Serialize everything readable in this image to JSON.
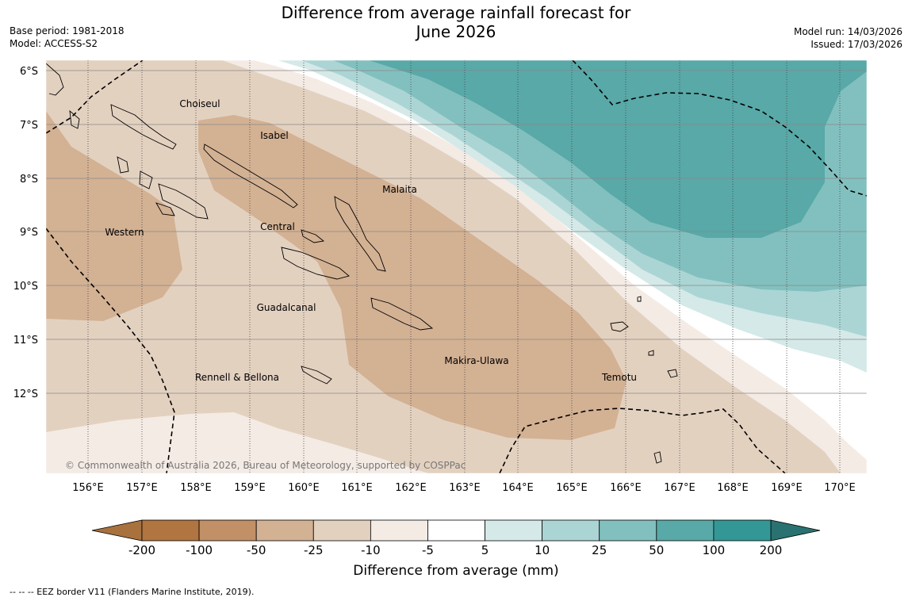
{
  "title": {
    "line1": "Difference from average rainfall forecast for",
    "line2": "June 2026"
  },
  "meta_left": {
    "base_period": "Base period: 1981-2018",
    "model": "Model: ACCESS-S2"
  },
  "meta_right": {
    "model_run": "Model run: 14/03/2026",
    "issued": "Issued: 17/03/2026"
  },
  "map": {
    "lat_labels": [
      "6°S",
      "7°S",
      "8°S",
      "9°S",
      "10°S",
      "11°S",
      "12°S"
    ],
    "lon_labels": [
      "156°E",
      "157°E",
      "158°E",
      "159°E",
      "160°E",
      "161°E",
      "162°E",
      "163°E",
      "164°E",
      "165°E",
      "166°E",
      "167°E",
      "168°E",
      "169°E",
      "170°E"
    ],
    "regions": [
      "Choiseul",
      "Isabel",
      "Malaita",
      "Western",
      "Central",
      "Guadalcanal",
      "Makira-Ulawa",
      "Rennell & Bellona",
      "Temotu"
    ],
    "credit": "© Commonwealth of Australia 2026, Bureau of Meteorology, supported by COSPPac"
  },
  "legend": {
    "ticks": [
      "-200",
      "-100",
      "-50",
      "-25",
      "-10",
      "-5",
      "5",
      "10",
      "25",
      "50",
      "100",
      "200"
    ],
    "colors": [
      "#a8713d",
      "#b07540",
      "#c29066",
      "#d3b193",
      "#e3d1c0",
      "#f4ebe5",
      "#ffffff",
      "#d4e9e8",
      "#abd5d4",
      "#82c0bf",
      "#58a9a8",
      "#339795",
      "#2a7271"
    ],
    "title": "Difference from average (mm)"
  },
  "footnote": "--  --  -- EEZ border V11 (Flanders Marine Institute, 2019)."
}
